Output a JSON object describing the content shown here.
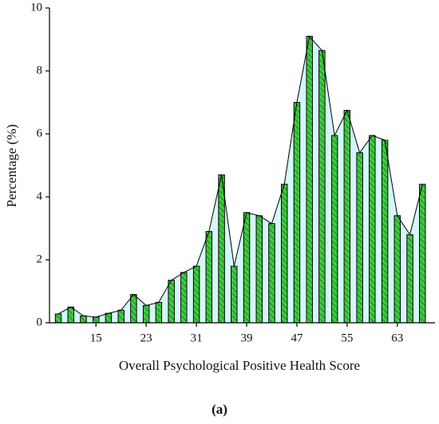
{
  "chart_data": {
    "type": "bar",
    "x_label": "Overall Psychological Positive Health Score",
    "y_label": "Percentage (%)",
    "caption": "(a)",
    "x": [
      9,
      11,
      13,
      15,
      17,
      19,
      21,
      23,
      25,
      27,
      29,
      31,
      33,
      35,
      37,
      39,
      41,
      43,
      45,
      47,
      49,
      51,
      53,
      55,
      57,
      59,
      61,
      63,
      65,
      67
    ],
    "values": [
      0.28,
      0.5,
      0.22,
      0.18,
      0.3,
      0.4,
      0.9,
      0.55,
      0.65,
      1.35,
      1.6,
      1.8,
      2.9,
      4.7,
      1.8,
      3.5,
      3.4,
      3.15,
      4.4,
      7.0,
      9.1,
      8.65,
      5.95,
      6.75,
      5.4,
      5.95,
      5.8,
      3.4,
      2.8,
      4.4
    ],
    "color": "#3dcc3d",
    "line_color": "#000000",
    "area_color": "#d4f7f7",
    "xlim": [
      7.6,
      69
    ],
    "xticks": [
      15,
      23,
      31,
      39,
      47,
      55,
      63
    ],
    "ylim": [
      0,
      10
    ],
    "yticks": [
      0,
      2,
      4,
      6,
      8,
      10
    ]
  }
}
